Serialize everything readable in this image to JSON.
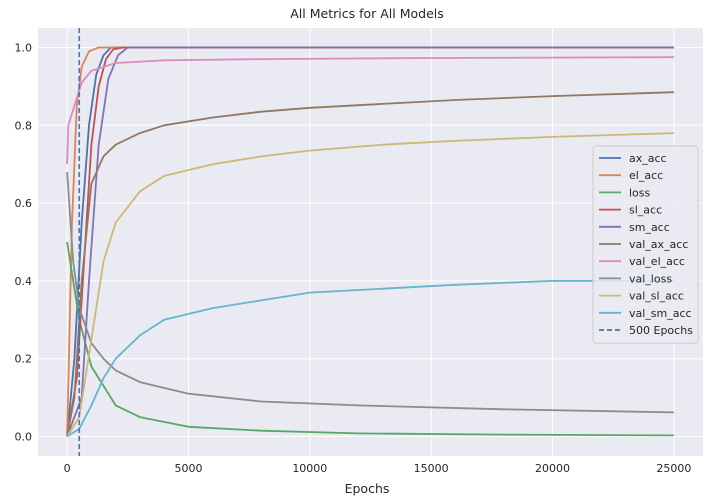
{
  "chart_data": {
    "type": "line",
    "title": "All Metrics for All Models",
    "xlabel": "Epochs",
    "ylabel": "",
    "xlim": [
      -1200,
      26200
    ],
    "ylim": [
      -0.05,
      1.05
    ],
    "xticks": [
      0,
      5000,
      10000,
      15000,
      20000,
      25000
    ],
    "yticks": [
      0.0,
      0.2,
      0.4,
      0.6,
      0.8,
      1.0
    ],
    "xtick_labels": [
      "0",
      "5000",
      "10000",
      "15000",
      "20000",
      "25000"
    ],
    "ytick_labels": [
      "0.0",
      "0.2",
      "0.4",
      "0.6",
      "0.8",
      "1.0"
    ],
    "grid": true,
    "background": "#eaeaf2",
    "legend_position": "center-right",
    "legend": [
      {
        "label": "ax_acc",
        "color": "#4c72b0",
        "style": "solid"
      },
      {
        "label": "el_acc",
        "color": "#dd8452",
        "style": "solid"
      },
      {
        "label": "loss",
        "color": "#55a868",
        "style": "solid"
      },
      {
        "label": "sl_acc",
        "color": "#c44e52",
        "style": "solid"
      },
      {
        "label": "sm_acc",
        "color": "#8172b3",
        "style": "solid"
      },
      {
        "label": "val_ax_acc",
        "color": "#937860",
        "style": "solid"
      },
      {
        "label": "val_el_acc",
        "color": "#da8bc3",
        "style": "solid"
      },
      {
        "label": "val_loss",
        "color": "#8c8c8c",
        "style": "solid"
      },
      {
        "label": "val_sl_acc",
        "color": "#ccb974",
        "style": "solid"
      },
      {
        "label": "val_sm_acc",
        "color": "#64b5cd",
        "style": "solid"
      },
      {
        "label": "500 Epochs",
        "color": "#4c72b0",
        "style": "dashed"
      }
    ],
    "vline": {
      "x": 500,
      "label": "500 Epochs",
      "color": "#4c72b0"
    },
    "series": [
      {
        "name": "ax_acc",
        "color": "#4c72b0",
        "x": [
          0,
          300,
          600,
          900,
          1200,
          1500,
          1800,
          2200,
          25000
        ],
        "y": [
          0.0,
          0.2,
          0.55,
          0.8,
          0.93,
          0.98,
          1.0,
          1.0,
          1.0
        ]
      },
      {
        "name": "el_acc",
        "color": "#dd8452",
        "x": [
          0,
          200,
          400,
          600,
          900,
          1300,
          1700,
          25000
        ],
        "y": [
          0.0,
          0.55,
          0.85,
          0.95,
          0.99,
          1.0,
          1.0,
          1.0
        ]
      },
      {
        "name": "loss",
        "color": "#55a868",
        "x": [
          0,
          500,
          1000,
          2000,
          3000,
          5000,
          8000,
          12000,
          18000,
          25000
        ],
        "y": [
          0.5,
          0.3,
          0.18,
          0.08,
          0.05,
          0.025,
          0.015,
          0.008,
          0.005,
          0.003
        ]
      },
      {
        "name": "sl_acc",
        "color": "#c44e52",
        "x": [
          0,
          400,
          700,
          1000,
          1300,
          1600,
          1900,
          2300,
          25000
        ],
        "y": [
          0.0,
          0.15,
          0.45,
          0.75,
          0.9,
          0.97,
          0.995,
          1.0,
          1.0
        ]
      },
      {
        "name": "sm_acc",
        "color": "#8172b3",
        "x": [
          0,
          600,
          900,
          1300,
          1700,
          2100,
          2500,
          25000
        ],
        "y": [
          0.0,
          0.1,
          0.4,
          0.75,
          0.92,
          0.98,
          1.0,
          1.0
        ]
      },
      {
        "name": "val_ax_acc",
        "color": "#937860",
        "x": [
          0,
          300,
          600,
          1000,
          1500,
          2000,
          3000,
          4000,
          6000,
          8000,
          10000,
          13000,
          16000,
          20000,
          25000
        ],
        "y": [
          0.0,
          0.1,
          0.4,
          0.65,
          0.72,
          0.75,
          0.78,
          0.8,
          0.82,
          0.835,
          0.845,
          0.855,
          0.865,
          0.875,
          0.885
        ]
      },
      {
        "name": "val_el_acc",
        "color": "#da8bc3",
        "x": [
          0,
          50,
          300,
          600,
          1000,
          2000,
          4000,
          8000,
          15000,
          25000
        ],
        "y": [
          0.7,
          0.8,
          0.85,
          0.91,
          0.94,
          0.96,
          0.967,
          0.97,
          0.973,
          0.975
        ]
      },
      {
        "name": "val_loss",
        "color": "#8c8c8c",
        "x": [
          0,
          250,
          500,
          1000,
          1500,
          2000,
          3000,
          5000,
          8000,
          12000,
          18000,
          25000
        ],
        "y": [
          0.68,
          0.45,
          0.33,
          0.24,
          0.2,
          0.17,
          0.14,
          0.11,
          0.09,
          0.08,
          0.07,
          0.062
        ]
      },
      {
        "name": "val_sl_acc",
        "color": "#ccb974",
        "x": [
          0,
          500,
          1000,
          1500,
          2000,
          3000,
          4000,
          6000,
          8000,
          10000,
          13000,
          16000,
          20000,
          25000
        ],
        "y": [
          0.0,
          0.05,
          0.25,
          0.45,
          0.55,
          0.63,
          0.67,
          0.7,
          0.72,
          0.735,
          0.75,
          0.76,
          0.77,
          0.78
        ]
      },
      {
        "name": "val_sm_acc",
        "color": "#64b5cd",
        "x": [
          0,
          500,
          1000,
          1500,
          2000,
          3000,
          4000,
          6000,
          8000,
          10000,
          13000,
          16000,
          20000,
          25000
        ],
        "y": [
          0.0,
          0.02,
          0.08,
          0.15,
          0.2,
          0.26,
          0.3,
          0.33,
          0.35,
          0.37,
          0.38,
          0.39,
          0.4,
          0.4
        ]
      }
    ]
  }
}
